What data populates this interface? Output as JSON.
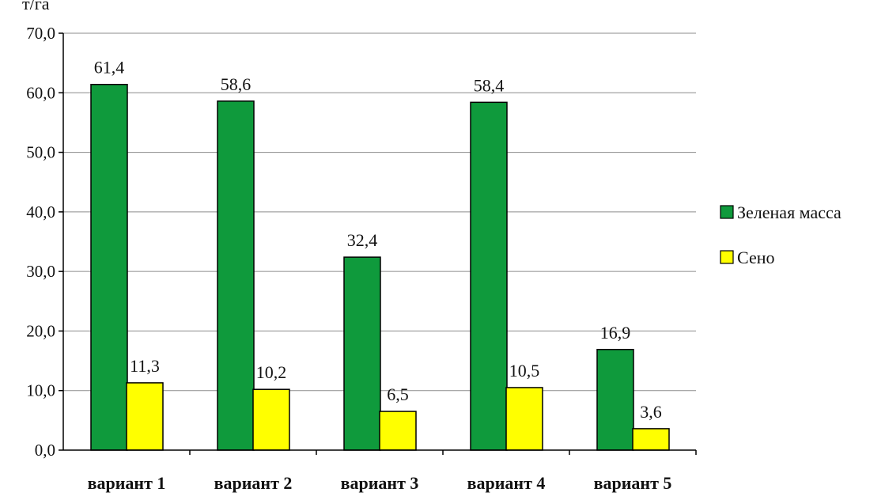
{
  "chart_data": {
    "type": "bar",
    "unit_label": "т/га",
    "categories": [
      "вариант 1",
      "вариант 2",
      "вариант 3",
      "вариант 4",
      "вариант 5"
    ],
    "series": [
      {
        "name": "Зеленая масса",
        "color": "#0f9a3c",
        "values": [
          61.4,
          58.6,
          32.4,
          58.4,
          16.9
        ],
        "labels": [
          "61,4",
          "58,6",
          "32,4",
          "58,4",
          "16,9"
        ]
      },
      {
        "name": "Сено",
        "color": "#ffff00",
        "values": [
          11.3,
          10.2,
          6.5,
          10.5,
          3.6
        ],
        "labels": [
          "11,3",
          "10,2",
          "6,5",
          "10,5",
          "3,6"
        ]
      }
    ],
    "ylim": [
      0,
      70
    ],
    "yticks": [
      0,
      10,
      20,
      30,
      40,
      50,
      60,
      70
    ],
    "ytick_labels": [
      "0,0",
      "10,0",
      "20,0",
      "30,0",
      "40,0",
      "50,0",
      "60,0",
      "70,0"
    ],
    "grid": true,
    "legend_position": "right"
  }
}
